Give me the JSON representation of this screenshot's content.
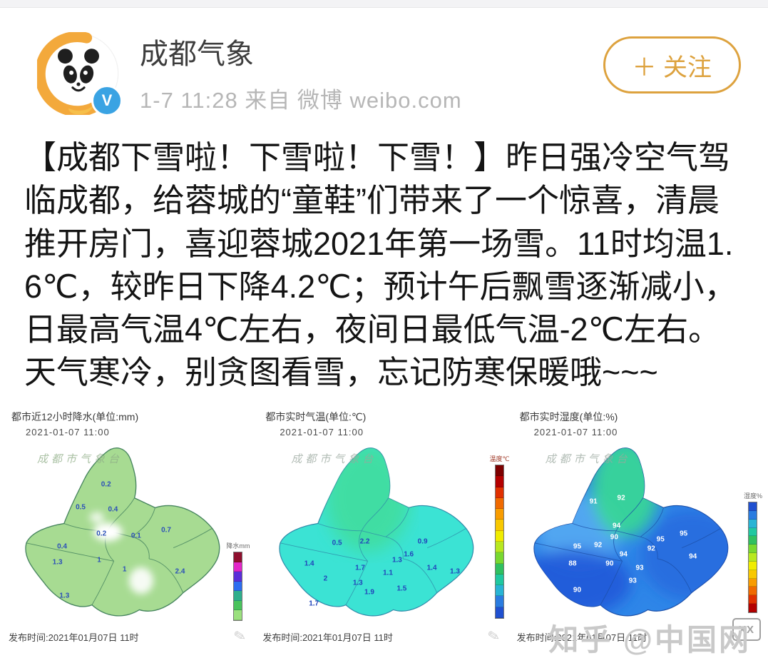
{
  "header": {
    "account_name": "成都气象",
    "meta": "1-7 11:28  来自 微博 weibo.com",
    "follow_label": "＋ 关注",
    "badge_letter": "V",
    "accent_color": "#dda23e",
    "badge_color": "#3aa3e3",
    "avatar_icon": "panda-gold-swirl-logo"
  },
  "post": {
    "text": "【成都下雪啦！下雪啦！下雪！】昨日强冷空气驾临成都，给蓉城的“童鞋”们带来了一个惊喜，清晨推开房门，喜迎蓉城2021年第一场雪。11时均温1.6℃，较昨日下降4.2℃；预计午后飘雪逐渐减小，日最高气温4℃左右，夜间日最低气温-2℃左右。天气寒冷，别贪图看雪，忘记防寒保暖哦~~~"
  },
  "footer_watermark": "知乎 @中国网",
  "logo_box_text": "XX",
  "scribble_glyph": "✎",
  "chart_data": [
    {
      "type": "heatmap",
      "title": "都市近12小时降水(单位:mm)",
      "datetime": "2021-01-07 11:00",
      "watermark": "成都市气象台",
      "caption": "发布时间:2021年01月07日 11时",
      "legend_label": "降水mm",
      "unit": "mm",
      "fill": "#a7db92",
      "stroke": "#47855f",
      "label_color": "#2c50b8",
      "legend_colors": [
        "#8f0f2e",
        "#e227c8",
        "#5a2fd8",
        "#2d6df0",
        "#2fae8c",
        "#49c35c",
        "#9be07e"
      ],
      "values": [
        {
          "x": 44,
          "y": 24,
          "v": "0.2"
        },
        {
          "x": 33,
          "y": 36,
          "v": "0.5"
        },
        {
          "x": 47,
          "y": 37,
          "v": "0.4"
        },
        {
          "x": 42,
          "y": 50,
          "v": "0.2"
        },
        {
          "x": 57,
          "y": 51,
          "v": "0.1"
        },
        {
          "x": 70,
          "y": 48,
          "v": "0.7"
        },
        {
          "x": 25,
          "y": 57,
          "v": "0.4"
        },
        {
          "x": 23,
          "y": 65,
          "v": "1.3"
        },
        {
          "x": 41,
          "y": 64,
          "v": "1"
        },
        {
          "x": 52,
          "y": 69,
          "v": "1"
        },
        {
          "x": 76,
          "y": 70,
          "v": "2.4"
        },
        {
          "x": 26,
          "y": 83,
          "v": "1.3"
        }
      ]
    },
    {
      "type": "heatmap",
      "title": "都市实时气温(单位:℃)",
      "datetime": "2021-01-07 11:00",
      "watermark": "成都市气象台",
      "caption": "发布时间:2021年01月07日 11时",
      "legend_label": "温度℃",
      "unit": "℃",
      "fill": "#3be3d4",
      "patch_color": "#41dc97",
      "stroke": "#2f89a8",
      "label_color": "#2244bb",
      "legend_colors": [
        "#7d0000",
        "#b40000",
        "#e03000",
        "#f06a00",
        "#f89c00",
        "#f8c800",
        "#f0ec00",
        "#b8e820",
        "#78d830",
        "#30c060",
        "#20c8a0",
        "#28b4d4",
        "#2a7ce0",
        "#2050d0"
      ],
      "values": [
        {
          "x": 34,
          "y": 55,
          "v": "0.5"
        },
        {
          "x": 46,
          "y": 54,
          "v": "2.2"
        },
        {
          "x": 44,
          "y": 68,
          "v": "1.7"
        },
        {
          "x": 43,
          "y": 76,
          "v": "1.3"
        },
        {
          "x": 22,
          "y": 66,
          "v": "1.4"
        },
        {
          "x": 29,
          "y": 74,
          "v": "2"
        },
        {
          "x": 48,
          "y": 81,
          "v": "1.9"
        },
        {
          "x": 56,
          "y": 71,
          "v": "1.1"
        },
        {
          "x": 60,
          "y": 64,
          "v": "1.3"
        },
        {
          "x": 65,
          "y": 61,
          "v": "1.6"
        },
        {
          "x": 71,
          "y": 54,
          "v": "0.9"
        },
        {
          "x": 75,
          "y": 68,
          "v": "1.4"
        },
        {
          "x": 62,
          "y": 79,
          "v": "1.5"
        },
        {
          "x": 24,
          "y": 87,
          "v": "1.7"
        },
        {
          "x": 85,
          "y": 70,
          "v": "1.3"
        }
      ]
    },
    {
      "type": "heatmap",
      "title": "都市实时湿度(单位:%)",
      "datetime": "2021-01-07 11:00",
      "watermark": "成都市气象台",
      "caption": "发布时间:2021年01月07日 11时",
      "legend_label": "湿度%",
      "unit": "%",
      "fill": "#2e86e8",
      "patch_green": "#37d993",
      "patch_light": "#55aaf2",
      "patch_dark": "#1d55d8",
      "stroke": "#1b4ea6",
      "label_color": "#ffffff",
      "legend_colors": [
        "#2050d0",
        "#2a7ce0",
        "#28b4d4",
        "#20c8a0",
        "#30c060",
        "#78d830",
        "#b8e820",
        "#f0ec00",
        "#f8c800",
        "#f89c00",
        "#f06a00",
        "#e03000",
        "#b40000"
      ],
      "values": [
        {
          "x": 35,
          "y": 33,
          "v": "91"
        },
        {
          "x": 47,
          "y": 31,
          "v": "92"
        },
        {
          "x": 45,
          "y": 46,
          "v": "94"
        },
        {
          "x": 44,
          "y": 52,
          "v": "90"
        },
        {
          "x": 37,
          "y": 56,
          "v": "92"
        },
        {
          "x": 28,
          "y": 57,
          "v": "95"
        },
        {
          "x": 26,
          "y": 66,
          "v": "88"
        },
        {
          "x": 42,
          "y": 66,
          "v": "90"
        },
        {
          "x": 48,
          "y": 61,
          "v": "94"
        },
        {
          "x": 55,
          "y": 68,
          "v": "93"
        },
        {
          "x": 60,
          "y": 58,
          "v": "92"
        },
        {
          "x": 64,
          "y": 53,
          "v": "95"
        },
        {
          "x": 74,
          "y": 50,
          "v": "95"
        },
        {
          "x": 78,
          "y": 62,
          "v": "94"
        },
        {
          "x": 28,
          "y": 80,
          "v": "90"
        },
        {
          "x": 52,
          "y": 75,
          "v": "93"
        }
      ]
    }
  ]
}
